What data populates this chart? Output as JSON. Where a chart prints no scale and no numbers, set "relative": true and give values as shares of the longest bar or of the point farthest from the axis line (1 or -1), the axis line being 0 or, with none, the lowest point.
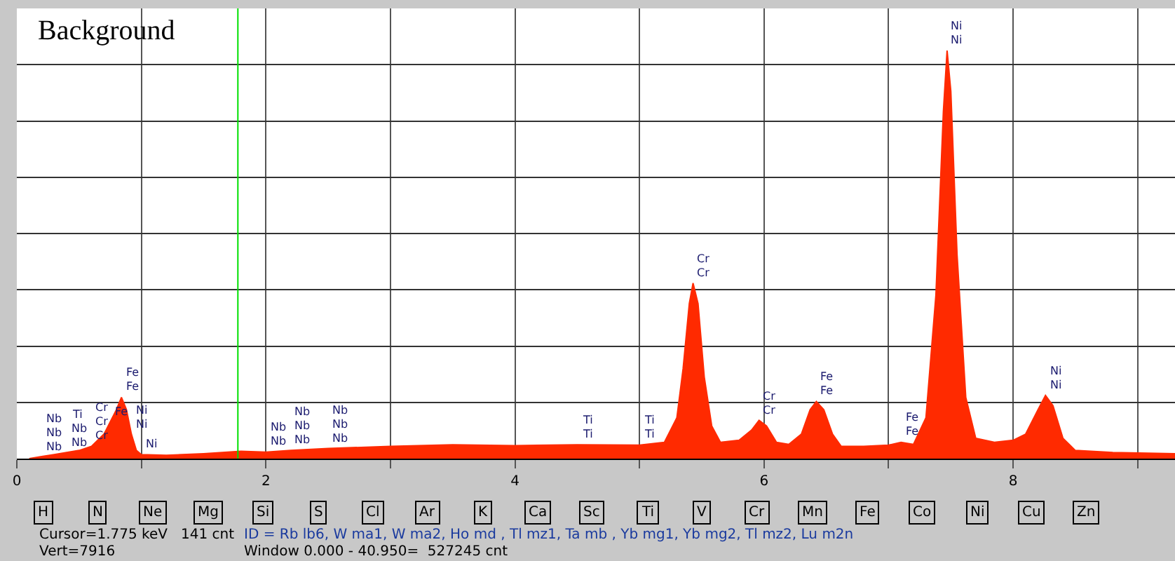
{
  "chart_data": {
    "type": "area",
    "title": "Background",
    "relative": true,
    "xlim": [
      0,
      9.3
    ],
    "xticks": [
      0,
      {
        "value": 1,
        "label": null
      },
      2,
      {
        "value": 3,
        "label": null
      },
      4,
      {
        "value": 5,
        "label": null
      },
      6,
      {
        "value": 7,
        "label": null
      },
      8,
      {
        "value": 9,
        "label": null
      }
    ],
    "grid": true,
    "marker": "none",
    "series": [
      {
        "color": "#ff2a00",
        "x": [
          0.1,
          0.2,
          0.3,
          0.4,
          0.5,
          0.6,
          0.7,
          0.75,
          0.8,
          0.84,
          0.88,
          0.92,
          0.96,
          1.0,
          1.2,
          1.5,
          1.8,
          2.0,
          2.2,
          2.5,
          3.0,
          3.5,
          4.0,
          4.5,
          5.0,
          5.2,
          5.3,
          5.35,
          5.4,
          5.43,
          5.47,
          5.52,
          5.58,
          5.65,
          5.8,
          5.9,
          5.96,
          6.02,
          6.1,
          6.2,
          6.3,
          6.37,
          6.42,
          6.48,
          6.55,
          6.62,
          6.8,
          7.0,
          7.1,
          7.2,
          7.3,
          7.38,
          7.44,
          7.47,
          7.5,
          7.55,
          7.62,
          7.7,
          7.85,
          8.0,
          8.1,
          8.2,
          8.26,
          8.32,
          8.4,
          8.5,
          8.8,
          9.3
        ],
        "values": [
          0,
          0.005,
          0.01,
          0.015,
          0.02,
          0.03,
          0.06,
          0.09,
          0.12,
          0.15,
          0.12,
          0.06,
          0.02,
          0.01,
          0.008,
          0.012,
          0.018,
          0.016,
          0.02,
          0.025,
          0.03,
          0.034,
          0.032,
          0.034,
          0.033,
          0.04,
          0.1,
          0.22,
          0.38,
          0.43,
          0.38,
          0.2,
          0.08,
          0.04,
          0.045,
          0.07,
          0.094,
          0.08,
          0.04,
          0.035,
          0.06,
          0.12,
          0.14,
          0.12,
          0.06,
          0.03,
          0.03,
          0.033,
          0.04,
          0.035,
          0.1,
          0.4,
          0.85,
          1,
          0.9,
          0.5,
          0.15,
          0.05,
          0.04,
          0.045,
          0.06,
          0.12,
          0.155,
          0.13,
          0.05,
          0.02,
          0.015,
          0.012
        ]
      }
    ],
    "ref_lines": [
      {
        "axis": "x",
        "value": 1.775,
        "color": "#00e000"
      }
    ],
    "annotations": [
      {
        "text": "Nb",
        "x": 0.2,
        "y": 0.005
      },
      {
        "text": "Nb",
        "x": 0.2,
        "y": 0.005
      },
      {
        "text": "Nb",
        "x": 0.2,
        "y": 0.005
      },
      {
        "text": "Nb",
        "x": 0.4,
        "y": 0.015
      },
      {
        "text": "Nb",
        "x": 0.4,
        "y": 0.015
      },
      {
        "text": "Ti",
        "x": 0.4,
        "y": 0.015
      },
      {
        "text": "Cr",
        "x": 0.6,
        "y": 0.03
      },
      {
        "text": "Cr",
        "x": 0.6,
        "y": 0.03
      },
      {
        "text": "Cr",
        "x": 0.6,
        "y": 0.03
      },
      {
        "text": "Fe",
        "x": 0.75,
        "y": 0.09
      },
      {
        "text": "Fe",
        "x": 0.84,
        "y": 0.15
      },
      {
        "text": "Fe",
        "x": 0.84,
        "y": 0.15
      },
      {
        "text": "Ni",
        "x": 0.92,
        "y": 0.06
      },
      {
        "text": "Ni",
        "x": 0.92,
        "y": 0.06
      },
      {
        "text": "Ni",
        "x": 1.0,
        "y": 0.01
      },
      {
        "text": "Nb",
        "x": 2.0,
        "y": 0.016
      },
      {
        "text": "Nb",
        "x": 2.0,
        "y": 0.016
      },
      {
        "text": "Nb",
        "x": 2.2,
        "y": 0.02
      },
      {
        "text": "Nb",
        "x": 2.2,
        "y": 0.02
      },
      {
        "text": "Nb",
        "x": 2.2,
        "y": 0.02
      },
      {
        "text": "Nb",
        "x": 2.5,
        "y": 0.025
      },
      {
        "text": "Nb",
        "x": 2.5,
        "y": 0.025
      },
      {
        "text": "Nb",
        "x": 2.5,
        "y": 0.025
      },
      {
        "text": "Ti",
        "x": 4.5,
        "y": 0.034
      },
      {
        "text": "Ti",
        "x": 4.5,
        "y": 0.034
      },
      {
        "text": "Ti",
        "x": 5.0,
        "y": 0.033
      },
      {
        "text": "Ti",
        "x": 5.0,
        "y": 0.033
      },
      {
        "text": "Cr",
        "x": 5.43,
        "y": 0.43
      },
      {
        "text": "Cr",
        "x": 5.43,
        "y": 0.43
      },
      {
        "text": "Cr",
        "x": 5.96,
        "y": 0.094
      },
      {
        "text": "Cr",
        "x": 5.96,
        "y": 0.094
      },
      {
        "text": "Fe",
        "x": 6.42,
        "y": 0.14
      },
      {
        "text": "Fe",
        "x": 6.42,
        "y": 0.14
      },
      {
        "text": "Fe",
        "x": 7.1,
        "y": 0.04
      },
      {
        "text": "Fe",
        "x": 7.1,
        "y": 0.04
      },
      {
        "text": "Ni",
        "x": 7.47,
        "y": 1
      },
      {
        "text": "Ni",
        "x": 7.47,
        "y": 1
      },
      {
        "text": "Ni",
        "x": 8.26,
        "y": 0.155
      },
      {
        "text": "Ni",
        "x": 8.26,
        "y": 0.155
      },
      "H",
      "N",
      "Ne",
      "Mg",
      "Si",
      "S",
      "Cl",
      "Ar",
      "K",
      "Ca",
      "Sc",
      "Ti",
      "V",
      "Cr",
      "Mn",
      "Fe",
      "Co",
      "Ni",
      "Cu",
      "Zn",
      "Cursor=1.775 keV   141 cnt",
      "ID = Rb lb6, W ma1, W ma2, Ho md , Tl mz1, Ta mb , Yb mg1, Yb mg2, Tl mz2, Lu m2n",
      "Vert=7916",
      "Window 0.000 - 40.950=  527245 cnt"
    ]
  }
}
